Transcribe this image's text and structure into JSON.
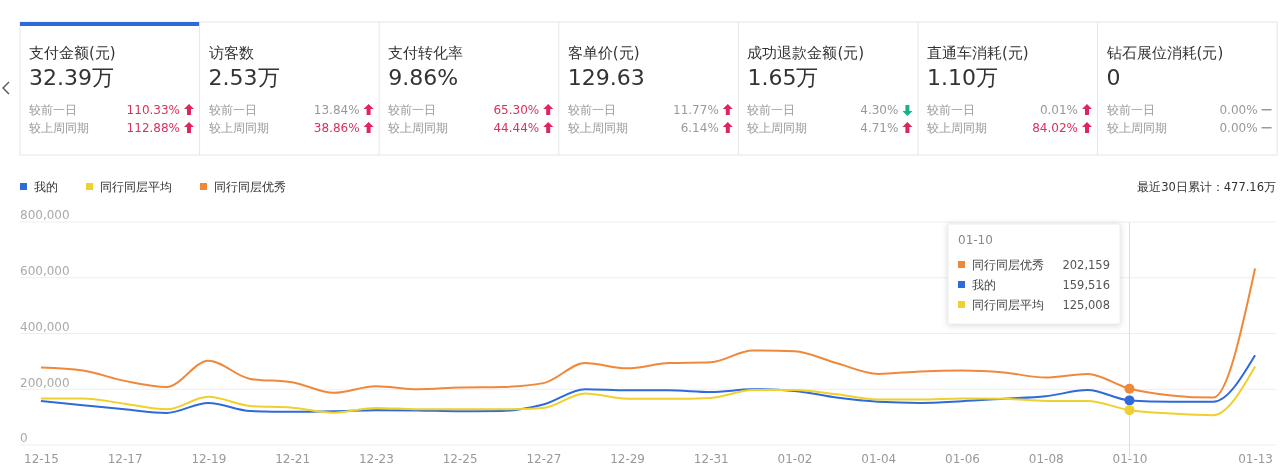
{
  "chart_data": [
    {
      "type": "other",
      "categories": [
        "支付金额(元)",
        "访客数",
        "支付转化率",
        "客单价(元)",
        "成功退款金额(元)",
        "直通车消耗(元)",
        "钻石展位消耗(元)"
      ],
      "value_labels": [
        "32.39万",
        "2.53万",
        "9.86%",
        "129.63",
        "1.65万",
        "1.10万",
        "0"
      ],
      "annotations": [
        "较前一日",
        "110.33%",
        "较上周同期",
        "112.88%",
        "较前一日",
        "13.84%",
        "较上周同期",
        "38.86%",
        "较前一日",
        "65.30%",
        "较上周同期",
        "44.44%",
        "较前一日",
        "11.77%",
        "较上周同期",
        "6.14%",
        "较前一日",
        "4.30%",
        "较上周同期",
        "4.71%",
        "较前一日",
        "0.01%",
        "较上周同期",
        "84.02%",
        "较前一日",
        "0.00%",
        "较上周同期",
        "0.00%"
      ]
    },
    {
      "type": "line",
      "categories": [
        "12-15",
        null,
        "12-17",
        null,
        "12-19",
        null,
        "12-21",
        null,
        "12-23",
        null,
        "12-25",
        null,
        "12-27",
        null,
        "12-29",
        null,
        "12-31",
        null,
        "01-02",
        null,
        "01-04",
        null,
        "01-06",
        null,
        "01-08",
        null,
        "01-10",
        null,
        null,
        "01-13"
      ],
      "series": [
        {
          "name": "我的",
          "color": "#2f6ad9",
          "values": [
            158000,
            143000,
            128000,
            115000,
            151000,
            122000,
            119000,
            121000,
            125000,
            124000,
            121000,
            122000,
            145000,
            200000,
            196000,
            196000,
            190000,
            200000,
            194000,
            170000,
            155000,
            151000,
            157000,
            166000,
            175000,
            197000,
            160000,
            155000,
            155000,
            322000
          ]
        },
        {
          "name": "同行同层平均",
          "color": "#f0d02c",
          "values": [
            167000,
            167000,
            148000,
            128000,
            173000,
            140000,
            134000,
            116000,
            133000,
            128000,
            128000,
            128000,
            133000,
            185000,
            166000,
            166000,
            169000,
            197000,
            197000,
            182000,
            163000,
            163000,
            167000,
            166000,
            158000,
            158000,
            125000,
            113000,
            107000,
            282000
          ]
        },
        {
          "name": "同行同层优秀",
          "color": "#f0883a",
          "values": [
            278000,
            267000,
            230000,
            208000,
            302000,
            237000,
            225000,
            187000,
            211000,
            200000,
            206000,
            208000,
            222000,
            294000,
            275000,
            294000,
            297000,
            339000,
            336000,
            294000,
            255000,
            264000,
            267000,
            260000,
            242000,
            255000,
            202000,
            178000,
            170000,
            633000
          ]
        }
      ],
      "ylim": [
        0,
        800000
      ],
      "yticks": [
        {
          "value": 0,
          "label": "0"
        },
        {
          "value": 200000,
          "label": "200,000"
        },
        {
          "value": 400000,
          "label": "400,000"
        },
        {
          "value": 600000,
          "label": "600,000"
        },
        {
          "value": 800000,
          "label": "800,000"
        }
      ],
      "grid": "y",
      "legend": "top left",
      "ref_lines": [
        {
          "axis": "x",
          "value": "01-10",
          "label": null
        }
      ],
      "annotations": [
        "最近30日累计：477.16万",
        "01-10",
        "同行同层优秀",
        "202,159",
        "我的",
        "159,516",
        "同行同层平均",
        "125,008"
      ]
    }
  ]
}
